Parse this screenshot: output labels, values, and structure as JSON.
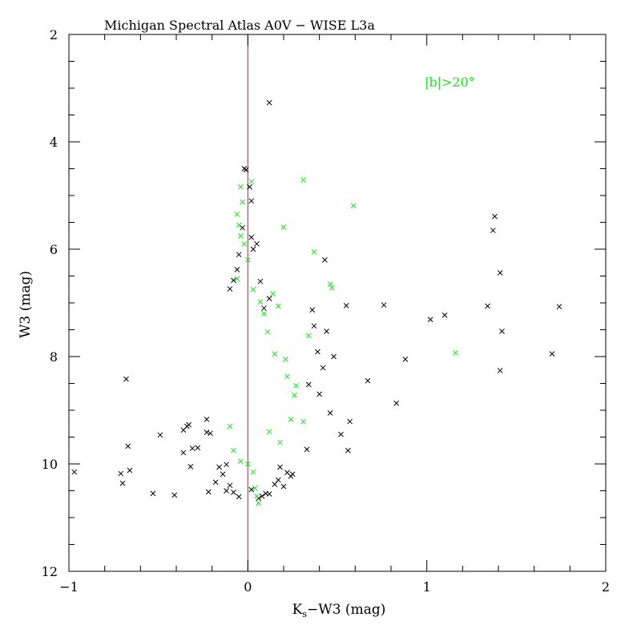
{
  "chart_data": {
    "type": "scatter",
    "title": "Michigan Spectral Atlas A0V − WISE L3a",
    "xlabel_main": "K",
    "xlabel_sub": "s",
    "xlabel_rest": "−W3 (mag)",
    "ylabel": "W3 (mag)",
    "annotation": "|b|>20°",
    "xlim": [
      -1,
      2
    ],
    "ylim": [
      12,
      2
    ],
    "y_inverted": true,
    "x_ticks": [
      -1,
      0,
      1,
      2
    ],
    "x_tick_labels": [
      "−1",
      "0",
      "1",
      "2"
    ],
    "y_ticks": [
      2,
      4,
      6,
      8,
      10,
      12
    ],
    "y_tick_labels": [
      "2",
      "4",
      "6",
      "8",
      "10",
      "12"
    ],
    "reference_line": {
      "x": 0,
      "color": "#e01010"
    },
    "marker": "x",
    "colors": {
      "all": "#000000",
      "high_lat": "#19e619",
      "axes": "#000000"
    },
    "series": [
      {
        "color": "#000000",
        "points": [
          [
            -0.97,
            10.15
          ],
          [
            -0.71,
            10.18
          ],
          [
            -0.7,
            10.36
          ],
          [
            -0.66,
            10.12
          ],
          [
            -0.67,
            9.67
          ],
          [
            -0.68,
            8.42
          ],
          [
            -0.53,
            10.55
          ],
          [
            -0.49,
            9.46
          ],
          [
            -0.41,
            10.58
          ],
          [
            -0.36,
            9.79
          ],
          [
            -0.36,
            9.37
          ],
          [
            -0.34,
            9.3
          ],
          [
            -0.33,
            9.27
          ],
          [
            -0.32,
            10.05
          ],
          [
            -0.31,
            9.71
          ],
          [
            -0.28,
            9.7
          ],
          [
            -0.23,
            9.17
          ],
          [
            -0.23,
            9.41
          ],
          [
            -0.21,
            9.43
          ],
          [
            -0.22,
            10.52
          ],
          [
            0.12,
            3.27
          ],
          [
            0.67,
            8.45
          ],
          [
            0.76,
            7.04
          ],
          [
            0.83,
            8.87
          ],
          [
            0.88,
            8.05
          ],
          [
            1.02,
            7.31
          ],
          [
            1.1,
            7.23
          ],
          [
            1.34,
            7.06
          ],
          [
            1.37,
            5.65
          ],
          [
            1.38,
            5.39
          ],
          [
            1.41,
            8.26
          ],
          [
            1.41,
            6.44
          ],
          [
            1.42,
            7.53
          ],
          [
            1.7,
            7.95
          ],
          [
            1.74,
            7.07
          ],
          [
            0.55,
            7.05
          ],
          [
            0.56,
            9.75
          ],
          [
            0.57,
            9.21
          ],
          [
            0.52,
            9.45
          ],
          [
            0.48,
            8.0
          ],
          [
            0.46,
            9.05
          ],
          [
            0.44,
            7.53
          ],
          [
            0.42,
            8.21
          ],
          [
            0.43,
            6.2
          ],
          [
            0.4,
            8.7
          ],
          [
            0.39,
            7.91
          ],
          [
            0.37,
            7.43
          ],
          [
            0.36,
            7.13
          ],
          [
            0.34,
            8.52
          ],
          [
            0.33,
            9.73
          ],
          [
            -0.02,
            4.5
          ],
          [
            -0.01,
            4.52
          ],
          [
            0.01,
            4.84
          ],
          [
            0.02,
            5.1
          ],
          [
            -0.03,
            5.6
          ],
          [
            0.02,
            5.78
          ],
          [
            0.03,
            6.0
          ],
          [
            -0.05,
            6.1
          ],
          [
            0.05,
            5.9
          ],
          [
            -0.06,
            6.38
          ],
          [
            0.07,
            6.6
          ],
          [
            -0.08,
            6.58
          ],
          [
            0.09,
            7.1
          ],
          [
            -0.1,
            6.74
          ],
          [
            0.12,
            6.92
          ],
          [
            -0.1,
            10.4
          ],
          [
            -0.08,
            10.53
          ],
          [
            -0.12,
            10.5
          ],
          [
            -0.05,
            10.61
          ],
          [
            0.02,
            10.48
          ],
          [
            0.06,
            10.64
          ],
          [
            0.08,
            10.6
          ],
          [
            0.1,
            10.55
          ],
          [
            0.12,
            10.56
          ],
          [
            0.15,
            10.38
          ],
          [
            0.17,
            10.3
          ],
          [
            0.2,
            10.42
          ],
          [
            0.24,
            10.23
          ],
          [
            0.25,
            10.19
          ],
          [
            0.18,
            10.06
          ],
          [
            0.22,
            10.16
          ],
          [
            -0.14,
            10.19
          ],
          [
            -0.16,
            10.06
          ],
          [
            -0.18,
            10.34
          ],
          [
            -0.12,
            10.01
          ]
        ]
      },
      {
        "color": "#19e619",
        "points": [
          [
            0.31,
            4.71
          ],
          [
            0.59,
            5.19
          ],
          [
            0.37,
            6.05
          ],
          [
            0.46,
            6.65
          ],
          [
            0.47,
            6.72
          ],
          [
            1.16,
            7.93
          ],
          [
            0.34,
            7.61
          ],
          [
            0.2,
            5.59
          ],
          [
            0.02,
            4.74
          ],
          [
            -0.04,
            4.84
          ],
          [
            -0.03,
            5.12
          ],
          [
            -0.06,
            5.35
          ],
          [
            -0.05,
            5.55
          ],
          [
            -0.04,
            5.75
          ],
          [
            -0.02,
            5.9
          ],
          [
            0.0,
            6.2
          ],
          [
            -0.06,
            6.55
          ],
          [
            0.03,
            6.75
          ],
          [
            0.07,
            6.98
          ],
          [
            0.09,
            7.2
          ],
          [
            0.06,
            10.73
          ],
          [
            0.05,
            10.6
          ],
          [
            0.04,
            10.45
          ],
          [
            0.26,
            8.72
          ],
          [
            0.24,
            9.17
          ],
          [
            0.27,
            8.54
          ],
          [
            0.31,
            9.21
          ],
          [
            0.22,
            8.37
          ],
          [
            0.14,
            6.83
          ],
          [
            0.17,
            7.06
          ],
          [
            0.11,
            7.54
          ],
          [
            0.15,
            7.95
          ],
          [
            0.21,
            8.05
          ],
          [
            0.12,
            9.4
          ],
          [
            0.18,
            9.6
          ],
          [
            -0.1,
            9.3
          ],
          [
            -0.08,
            9.75
          ],
          [
            -0.04,
            9.95
          ],
          [
            0.03,
            10.15
          ],
          [
            0.0,
            10.0
          ]
        ]
      }
    ]
  }
}
